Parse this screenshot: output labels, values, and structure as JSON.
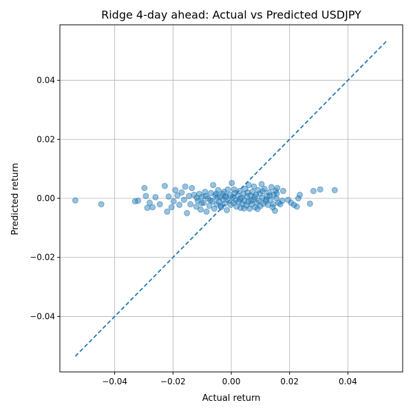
{
  "chart_data": {
    "type": "scatter",
    "title": "Ridge 4-day ahead: Actual vs Predicted USDJPY",
    "xlabel": "Actual return",
    "ylabel": "Predicted return",
    "xlim": [
      -0.0588,
      0.0588
    ],
    "ylim": [
      -0.0588,
      0.0588
    ],
    "grid": true,
    "x_ticks": [
      -0.04,
      -0.02,
      0.0,
      0.02,
      0.04
    ],
    "y_ticks": [
      -0.04,
      -0.02,
      0.0,
      0.02,
      0.04
    ],
    "x_tick_labels": [
      "−0.04",
      "−0.02",
      "0.00",
      "0.02",
      "0.04"
    ],
    "y_tick_labels": [
      "−0.04",
      "−0.02",
      "0.00",
      "0.02",
      "0.04"
    ],
    "reference_line": {
      "style": "dashed",
      "x": [
        -0.0535,
        0.0535
      ],
      "y": [
        -0.0535,
        0.0535
      ]
    },
    "colors": {
      "points": "#1f77b4",
      "line": "#1f77b4",
      "grid": "#b0b0b0"
    },
    "points": [
      [
        -0.0535,
        -0.0007
      ],
      [
        -0.0446,
        -0.002
      ],
      [
        -0.033,
        -0.001
      ],
      [
        -0.032,
        -0.0008
      ],
      [
        -0.0298,
        0.0035
      ],
      [
        -0.0293,
        0.0008
      ],
      [
        -0.0288,
        -0.0032
      ],
      [
        -0.028,
        -0.0015
      ],
      [
        -0.027,
        -0.003
      ],
      [
        -0.026,
        0.0004
      ],
      [
        -0.0245,
        -0.002
      ],
      [
        -0.0228,
        0.0042
      ],
      [
        -0.022,
        -0.0045
      ],
      [
        -0.0215,
        0.0006
      ],
      [
        -0.0205,
        -0.003
      ],
      [
        -0.0198,
        -0.001
      ],
      [
        -0.0192,
        0.0028
      ],
      [
        -0.0185,
        0.001
      ],
      [
        -0.0178,
        -0.0022
      ],
      [
        -0.017,
        0.002
      ],
      [
        -0.0162,
        -0.0005
      ],
      [
        -0.0158,
        0.004
      ],
      [
        -0.0152,
        -0.005
      ],
      [
        -0.0145,
        0.0008
      ],
      [
        -0.014,
        -0.002
      ],
      [
        -0.0135,
        0.0035
      ],
      [
        -0.0128,
        0.0012
      ],
      [
        -0.012,
        -0.0028
      ],
      [
        -0.0115,
        -0.0008
      ],
      [
        -0.011,
        0.0015
      ],
      [
        -0.0105,
        -0.0038
      ],
      [
        -0.01,
        0.0005
      ],
      [
        -0.0095,
        -0.0015
      ],
      [
        -0.009,
        0.0022
      ],
      [
        -0.0085,
        -0.0045
      ],
      [
        -0.008,
        0.0
      ],
      [
        -0.0075,
        -0.0025
      ],
      [
        -0.007,
        0.0018
      ],
      [
        -0.0065,
        -0.001
      ],
      [
        -0.0062,
        0.0045
      ],
      [
        -0.0058,
        -0.0035
      ],
      [
        -0.0055,
        0.001
      ],
      [
        -0.005,
        -0.002
      ],
      [
        -0.0048,
        0.0002
      ],
      [
        -0.0045,
        0.0028
      ],
      [
        -0.0042,
        -0.0012
      ],
      [
        -0.0038,
        0.0006
      ],
      [
        -0.0035,
        -0.003
      ],
      [
        -0.003,
        0.0015
      ],
      [
        -0.0028,
        -0.0005
      ],
      [
        -0.0025,
        0.0022
      ],
      [
        -0.0022,
        -0.0018
      ],
      [
        -0.0018,
        0.0008
      ],
      [
        -0.0015,
        -0.004
      ],
      [
        -0.0012,
        0.003
      ],
      [
        -0.0008,
        -0.0008
      ],
      [
        -0.0005,
        0.0012
      ],
      [
        -0.0002,
        -0.0022
      ],
      [
        0.0002,
        0.0052
      ],
      [
        0.0005,
        0.0004
      ],
      [
        0.0008,
        -0.0015
      ],
      [
        0.0012,
        0.0018
      ],
      [
        0.0015,
        -0.0006
      ],
      [
        0.0018,
        -0.0028
      ],
      [
        0.0022,
        0.001
      ],
      [
        0.0025,
        -0.0012
      ],
      [
        0.0028,
        0.0025
      ],
      [
        0.0032,
        -0.0032
      ],
      [
        0.0035,
        0.0002
      ],
      [
        0.0038,
        -0.0018
      ],
      [
        0.0042,
        0.0015
      ],
      [
        0.0045,
        -0.0008
      ],
      [
        0.0048,
        0.0032
      ],
      [
        0.0052,
        -0.0024
      ],
      [
        0.0055,
        0.0006
      ],
      [
        0.0058,
        -0.0012
      ],
      [
        0.006,
        0.0045
      ],
      [
        0.0063,
        -0.0035
      ],
      [
        0.0066,
        0.001
      ],
      [
        0.007,
        -0.002
      ],
      [
        0.0072,
        0.0022
      ],
      [
        0.0075,
        -0.0004
      ],
      [
        0.0078,
        0.004
      ],
      [
        0.0082,
        -0.003
      ],
      [
        0.0085,
        0.0012
      ],
      [
        0.0088,
        -0.0015
      ],
      [
        0.0092,
        0.0028
      ],
      [
        0.0095,
        -0.0008
      ],
      [
        0.0098,
        0.0016
      ],
      [
        0.01,
        -0.0026
      ],
      [
        0.0104,
        0.0048
      ],
      [
        0.0106,
        0.0002
      ],
      [
        0.011,
        -0.0018
      ],
      [
        0.0114,
        0.0032
      ],
      [
        0.0118,
        -0.001
      ],
      [
        0.0122,
        0.0008
      ],
      [
        0.0126,
        -0.0022
      ],
      [
        0.013,
        0.002
      ],
      [
        0.0134,
        -0.0005
      ],
      [
        0.0138,
        0.0038
      ],
      [
        0.0142,
        -0.003
      ],
      [
        0.0146,
        0.0012
      ],
      [
        0.015,
        -0.0042
      ],
      [
        0.0152,
        0.0025
      ],
      [
        0.0155,
        0.0
      ],
      [
        0.0158,
        0.0035
      ],
      [
        0.0162,
        -0.0015
      ],
      [
        0.0168,
        -0.002
      ],
      [
        0.0178,
        0.0025
      ],
      [
        0.0195,
        -0.0005
      ],
      [
        0.0205,
        -0.0015
      ],
      [
        0.0215,
        -0.0022
      ],
      [
        0.0225,
        -0.0028
      ],
      [
        0.023,
        0.0
      ],
      [
        0.0235,
        0.0012
      ],
      [
        0.027,
        -0.0018
      ],
      [
        0.0282,
        0.0025
      ],
      [
        0.0305,
        0.003
      ],
      [
        0.0355,
        0.0028
      ],
      [
        -0.0118,
        0.0002
      ],
      [
        -0.0102,
        -0.0016
      ],
      [
        -0.0088,
        0.0008
      ],
      [
        -0.0072,
        -0.0006
      ],
      [
        -0.0052,
        0.0016
      ],
      [
        -0.0036,
        -0.0026
      ],
      [
        -0.002,
        0.0004
      ],
      [
        0.001,
        0.003
      ],
      [
        0.003,
        -0.0002
      ],
      [
        0.0044,
        -0.0034
      ],
      [
        0.0056,
        0.002
      ],
      [
        0.0068,
        -0.0008
      ],
      [
        0.008,
        0.0004
      ],
      [
        0.009,
        -0.0036
      ],
      [
        0.0108,
        0.0024
      ],
      [
        0.012,
        -0.0004
      ],
      [
        0.0132,
        0.001
      ],
      [
        0.0144,
        -0.002
      ],
      [
        0.0156,
        0.0016
      ],
      [
        0.0175,
        -0.0008
      ]
    ]
  }
}
